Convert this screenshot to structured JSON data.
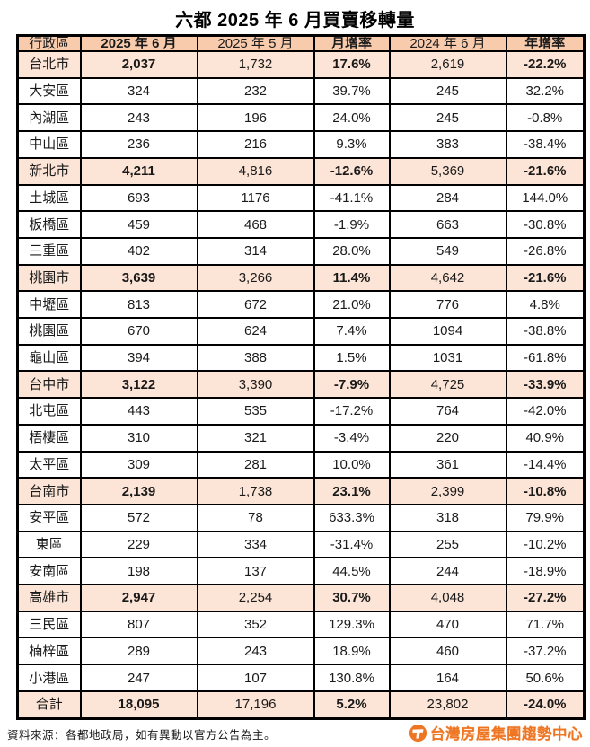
{
  "title": "六都 2025 年 6 月買賣移轉量",
  "colors": {
    "header_bg": "#F8CBAD",
    "highlight_bg": "#FCE4D6",
    "border": "#000000",
    "text": "#1A1A1A",
    "logo_orange": "#EE7623"
  },
  "chart_data": {
    "type": "table",
    "title": "六都 2025 年 6 月買賣移轉量",
    "columns": [
      "行政區",
      "2025 年 6 月",
      "2025 年 5 月",
      "月增率",
      "2024 年 6 月",
      "年增率"
    ],
    "emphasized_columns": [
      1,
      3,
      5
    ],
    "rows": [
      {
        "name": "台北市",
        "kind": "city",
        "values": [
          "2,037",
          "1,732",
          "17.6%",
          "2,619",
          "-22.2%"
        ]
      },
      {
        "name": "大安區",
        "kind": "district",
        "values": [
          "324",
          "232",
          "39.7%",
          "245",
          "32.2%"
        ]
      },
      {
        "name": "內湖區",
        "kind": "district",
        "values": [
          "243",
          "196",
          "24.0%",
          "245",
          "-0.8%"
        ]
      },
      {
        "name": "中山區",
        "kind": "district",
        "values": [
          "236",
          "216",
          "9.3%",
          "383",
          "-38.4%"
        ]
      },
      {
        "name": "新北市",
        "kind": "city",
        "values": [
          "4,211",
          "4,816",
          "-12.6%",
          "5,369",
          "-21.6%"
        ]
      },
      {
        "name": "土城區",
        "kind": "district",
        "values": [
          "693",
          "1176",
          "-41.1%",
          "284",
          "144.0%"
        ]
      },
      {
        "name": "板橋區",
        "kind": "district",
        "values": [
          "459",
          "468",
          "-1.9%",
          "663",
          "-30.8%"
        ]
      },
      {
        "name": "三重區",
        "kind": "district",
        "values": [
          "402",
          "314",
          "28.0%",
          "549",
          "-26.8%"
        ]
      },
      {
        "name": "桃園市",
        "kind": "city",
        "values": [
          "3,639",
          "3,266",
          "11.4%",
          "4,642",
          "-21.6%"
        ]
      },
      {
        "name": "中壢區",
        "kind": "district",
        "values": [
          "813",
          "672",
          "21.0%",
          "776",
          "4.8%"
        ]
      },
      {
        "name": "桃園區",
        "kind": "district",
        "values": [
          "670",
          "624",
          "7.4%",
          "1094",
          "-38.8%"
        ]
      },
      {
        "name": "龜山區",
        "kind": "district",
        "values": [
          "394",
          "388",
          "1.5%",
          "1031",
          "-61.8%"
        ]
      },
      {
        "name": "台中市",
        "kind": "city",
        "values": [
          "3,122",
          "3,390",
          "-7.9%",
          "4,725",
          "-33.9%"
        ]
      },
      {
        "name": "北屯區",
        "kind": "district",
        "values": [
          "443",
          "535",
          "-17.2%",
          "764",
          "-42.0%"
        ]
      },
      {
        "name": "梧棲區",
        "kind": "district",
        "values": [
          "310",
          "321",
          "-3.4%",
          "220",
          "40.9%"
        ]
      },
      {
        "name": "太平區",
        "kind": "district",
        "values": [
          "309",
          "281",
          "10.0%",
          "361",
          "-14.4%"
        ]
      },
      {
        "name": "台南市",
        "kind": "city",
        "values": [
          "2,139",
          "1,738",
          "23.1%",
          "2,399",
          "-10.8%"
        ]
      },
      {
        "name": "安平區",
        "kind": "district",
        "values": [
          "572",
          "78",
          "633.3%",
          "318",
          "79.9%"
        ]
      },
      {
        "name": "東區",
        "kind": "district",
        "values": [
          "229",
          "334",
          "-31.4%",
          "255",
          "-10.2%"
        ]
      },
      {
        "name": "安南區",
        "kind": "district",
        "values": [
          "198",
          "137",
          "44.5%",
          "244",
          "-18.9%"
        ]
      },
      {
        "name": "高雄市",
        "kind": "city",
        "values": [
          "2,947",
          "2,254",
          "30.7%",
          "4,048",
          "-27.2%"
        ]
      },
      {
        "name": "三民區",
        "kind": "district",
        "values": [
          "807",
          "352",
          "129.3%",
          "470",
          "71.7%"
        ]
      },
      {
        "name": "楠梓區",
        "kind": "district",
        "values": [
          "289",
          "243",
          "18.9%",
          "460",
          "-37.2%"
        ]
      },
      {
        "name": "小港區",
        "kind": "district",
        "values": [
          "247",
          "107",
          "130.8%",
          "164",
          "50.6%"
        ]
      },
      {
        "name": "合計",
        "kind": "total",
        "values": [
          "18,095",
          "17,196",
          "5.2%",
          "23,802",
          "-24.0%"
        ]
      }
    ]
  },
  "footer": {
    "source": "資料來源：各都地政局，如有異動以官方公告為主。",
    "logo_text": "台灣房屋集團趨勢中心"
  }
}
